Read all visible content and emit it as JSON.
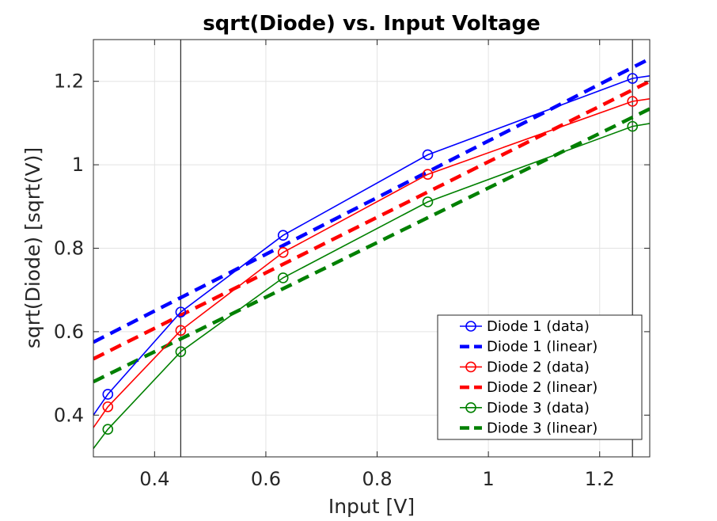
{
  "chart_data": {
    "type": "line",
    "title": "sqrt(Diode) vs. Input Voltage",
    "xlabel": "Input [V]",
    "ylabel": "sqrt(Diode) [sqrt(V)]",
    "xlim": [
      0.29,
      1.29
    ],
    "ylim": [
      0.3,
      1.3
    ],
    "xticks": [
      0.4,
      0.6,
      0.8,
      1.0,
      1.2
    ],
    "xtick_labels": [
      "0.4",
      "0.6",
      "0.8",
      "1",
      "1.2"
    ],
    "yticks": [
      0.4,
      0.6,
      0.8,
      1.0,
      1.2
    ],
    "ytick_labels": [
      "0.4",
      "0.6",
      "0.8",
      "1",
      "1.2"
    ],
    "grid": true,
    "legend_position": "bottom-right",
    "vertical_lines": [
      0.447,
      1.259
    ],
    "series": [
      {
        "name": "Diode 1 (data)",
        "style": "solid",
        "markers": true,
        "color": "#0000ff",
        "x": [
          0.29,
          0.316,
          0.447,
          0.631,
          0.891,
          1.259,
          1.29
        ],
        "y": [
          0.4,
          0.45,
          0.647,
          0.831,
          1.024,
          1.207,
          1.213
        ],
        "marker_x": [
          0.316,
          0.447,
          0.631,
          0.891,
          1.259
        ],
        "marker_y": [
          0.45,
          0.647,
          0.831,
          1.024,
          1.207
        ]
      },
      {
        "name": "Diode 1 (linear)",
        "style": "dashed",
        "markers": false,
        "color": "#0000ff",
        "x": [
          0.29,
          1.29
        ],
        "y": [
          0.575,
          1.254
        ]
      },
      {
        "name": "Diode 2 (data)",
        "style": "solid",
        "markers": true,
        "color": "#ff0000",
        "x": [
          0.29,
          0.316,
          0.447,
          0.631,
          0.891,
          1.259,
          1.29
        ],
        "y": [
          0.37,
          0.42,
          0.603,
          0.79,
          0.977,
          1.152,
          1.158
        ],
        "marker_x": [
          0.316,
          0.447,
          0.631,
          0.891,
          1.259
        ],
        "marker_y": [
          0.42,
          0.603,
          0.79,
          0.977,
          1.152
        ]
      },
      {
        "name": "Diode 2 (linear)",
        "style": "dashed",
        "markers": false,
        "color": "#ff0000",
        "x": [
          0.29,
          1.29
        ],
        "y": [
          0.535,
          1.2
        ]
      },
      {
        "name": "Diode 3 (data)",
        "style": "solid",
        "markers": true,
        "color": "#008000",
        "x": [
          0.29,
          0.316,
          0.447,
          0.631,
          0.891,
          1.259,
          1.29
        ],
        "y": [
          0.32,
          0.366,
          0.552,
          0.729,
          0.911,
          1.092,
          1.099
        ],
        "marker_x": [
          0.316,
          0.447,
          0.631,
          0.891,
          1.259
        ],
        "marker_y": [
          0.366,
          0.552,
          0.729,
          0.911,
          1.092
        ]
      },
      {
        "name": "Diode 3 (linear)",
        "style": "dashed",
        "markers": false,
        "color": "#008000",
        "x": [
          0.29,
          1.29
        ],
        "y": [
          0.48,
          1.134
        ]
      }
    ]
  }
}
